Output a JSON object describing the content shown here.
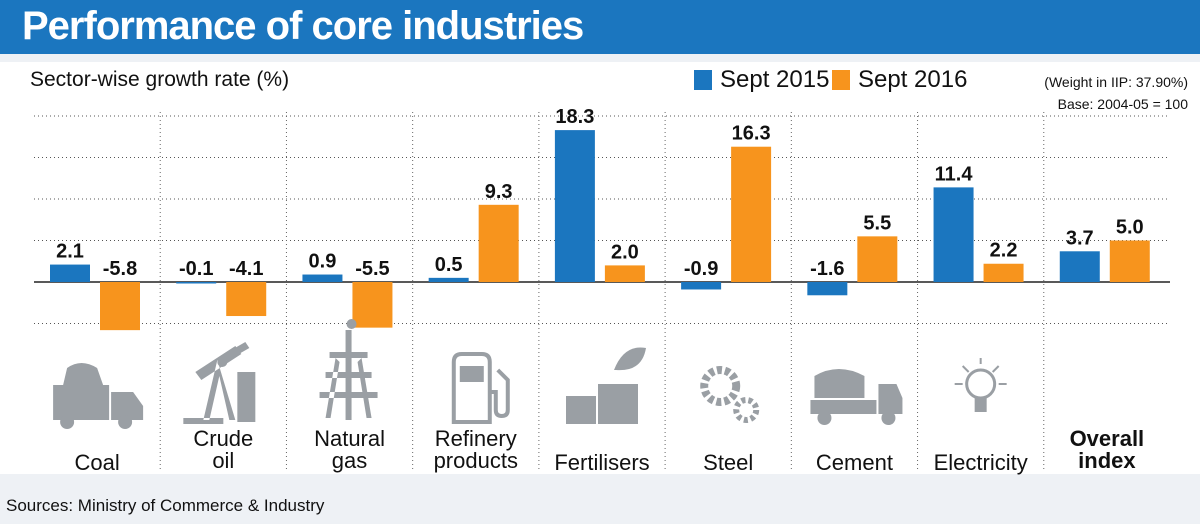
{
  "header": {
    "title": "Performance of core industries"
  },
  "subtitle": "Sector-wise growth rate (%)",
  "notes": {
    "weight": "(Weight in IIP: 37.90%)",
    "base": "Base: 2004-05 = 100"
  },
  "source": "Sources: Ministry of Commerce & Industry",
  "colors": {
    "sept2015": "#1b76bf",
    "sept2016": "#f7941d",
    "header": "#1b76bf"
  },
  "icons": [
    "truck-icon",
    "oil-pump-icon",
    "gas-rig-icon",
    "fuel-pump-icon",
    "factory-leaf-icon",
    "gears-icon",
    "mixer-truck-icon",
    "bulb-icon",
    ""
  ],
  "chart_data": {
    "type": "bar",
    "categories": [
      "Coal",
      "Crude oil",
      "Natural gas",
      "Refinery products",
      "Fertilisers",
      "Steel",
      "Cement",
      "Electricity",
      "Overall index"
    ],
    "category_lines": [
      [
        "Coal"
      ],
      [
        "Crude",
        "oil"
      ],
      [
        "Natural",
        "gas"
      ],
      [
        "Refinery",
        "products"
      ],
      [
        "Fertilisers"
      ],
      [
        "Steel"
      ],
      [
        "Cement"
      ],
      [
        "Electricity"
      ],
      [
        "Overall",
        "index"
      ]
    ],
    "series": [
      {
        "name": "Sept 2015",
        "values": [
          2.1,
          -0.1,
          0.9,
          0.5,
          18.3,
          -0.9,
          -1.6,
          11.4,
          3.7
        ]
      },
      {
        "name": "Sept 2016",
        "values": [
          -5.8,
          -4.1,
          -5.5,
          9.3,
          2.0,
          16.3,
          5.5,
          2.2,
          5.0
        ]
      }
    ],
    "labels": [
      [
        "2.1",
        "-0.1",
        "0.9",
        "0.5",
        "18.3",
        "-0.9",
        "-1.6",
        "11.4",
        "3.7"
      ],
      [
        "-5.8",
        "-4.1",
        "-5.5",
        "9.3",
        "2.0",
        "16.3",
        "5.5",
        "2.2",
        "5.0"
      ]
    ],
    "ylim": [
      -10,
      20
    ],
    "grid": true,
    "legend": "top"
  }
}
